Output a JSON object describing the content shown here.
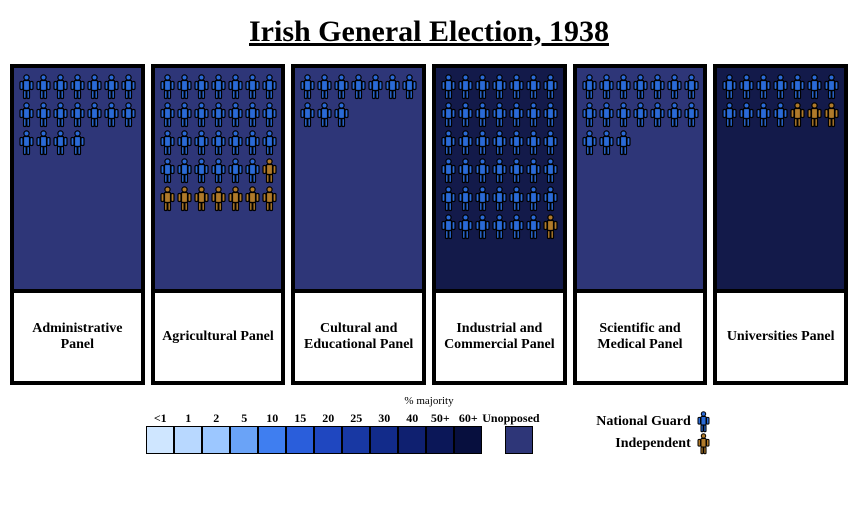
{
  "title": "Irish General Election, 1938",
  "legend_title": "% majority",
  "ng_color": "#2a6ad6",
  "ind_color": "#b07a2a",
  "outline": "#000000",
  "panels": [
    {
      "label": "Administrative Panel",
      "bg": "#2e3678",
      "rows": [
        [
          "ng",
          "ng",
          "ng",
          "ng",
          "ng",
          "ng",
          "ng"
        ],
        [
          "ng",
          "ng",
          "ng",
          "ng",
          "ng",
          "ng",
          "ng"
        ],
        [
          "ng",
          "ng",
          "ng",
          "ng"
        ]
      ]
    },
    {
      "label": "Agricultural Panel",
      "bg": "#2e3678",
      "rows": [
        [
          "ng",
          "ng",
          "ng",
          "ng",
          "ng",
          "ng",
          "ng"
        ],
        [
          "ng",
          "ng",
          "ng",
          "ng",
          "ng",
          "ng",
          "ng"
        ],
        [
          "ng",
          "ng",
          "ng",
          "ng",
          "ng",
          "ng",
          "ng"
        ],
        [
          "ng",
          "ng",
          "ng",
          "ng",
          "ng",
          "ng",
          "ind"
        ],
        [
          "ind",
          "ind",
          "ind",
          "ind",
          "ind",
          "ind",
          "ind"
        ]
      ]
    },
    {
      "label": "Cultural and Educational Panel",
      "bg": "#2e3678",
      "rows": [
        [
          "ng",
          "ng",
          "ng",
          "ng",
          "ng",
          "ng",
          "ng"
        ],
        [
          "ng",
          "ng",
          "ng"
        ]
      ]
    },
    {
      "label": "Industrial and Commercial Panel",
      "bg": "#131a4a",
      "rows": [
        [
          "ng",
          "ng",
          "ng",
          "ng",
          "ng",
          "ng",
          "ng"
        ],
        [
          "ng",
          "ng",
          "ng",
          "ng",
          "ng",
          "ng",
          "ng"
        ],
        [
          "ng",
          "ng",
          "ng",
          "ng",
          "ng",
          "ng",
          "ng"
        ],
        [
          "ng",
          "ng",
          "ng",
          "ng",
          "ng",
          "ng",
          "ng"
        ],
        [
          "ng",
          "ng",
          "ng",
          "ng",
          "ng",
          "ng",
          "ng"
        ],
        [
          "ng",
          "ng",
          "ng",
          "ng",
          "ng",
          "ng",
          "ind"
        ]
      ]
    },
    {
      "label": "Scientific and Medical Panel",
      "bg": "#2e3678",
      "rows": [
        [
          "ng",
          "ng",
          "ng",
          "ng",
          "ng",
          "ng",
          "ng"
        ],
        [
          "ng",
          "ng",
          "ng",
          "ng",
          "ng",
          "ng",
          "ng"
        ],
        [
          "ng",
          "ng",
          "ng"
        ]
      ]
    },
    {
      "label": "Universities Panel",
      "bg": "#131a4a",
      "rows": [
        [
          "ng",
          "ng",
          "ng",
          "ng",
          "ng",
          "ng",
          "ng"
        ],
        [
          "ng",
          "ng",
          "ng",
          "ng",
          "ind",
          "ind",
          "ind"
        ]
      ]
    }
  ],
  "scale": [
    {
      "label": "<1",
      "color": "#cfe6ff"
    },
    {
      "label": "1",
      "color": "#b8d8ff"
    },
    {
      "label": "2",
      "color": "#9cc7ff"
    },
    {
      "label": "5",
      "color": "#6aa3f7"
    },
    {
      "label": "10",
      "color": "#3f7ef0"
    },
    {
      "label": "15",
      "color": "#2a5edb"
    },
    {
      "label": "20",
      "color": "#1f47c0"
    },
    {
      "label": "25",
      "color": "#1838a3"
    },
    {
      "label": "30",
      "color": "#122b8a"
    },
    {
      "label": "40",
      "color": "#0f2070"
    },
    {
      "label": "50+",
      "color": "#0b1758"
    },
    {
      "label": "60+",
      "color": "#070f3e"
    },
    {
      "label": "Unopposed",
      "color": "#2e3678"
    }
  ],
  "parties": [
    {
      "label": "National Guard",
      "color_key": "ng"
    },
    {
      "label": "Independent",
      "color_key": "ind"
    }
  ]
}
